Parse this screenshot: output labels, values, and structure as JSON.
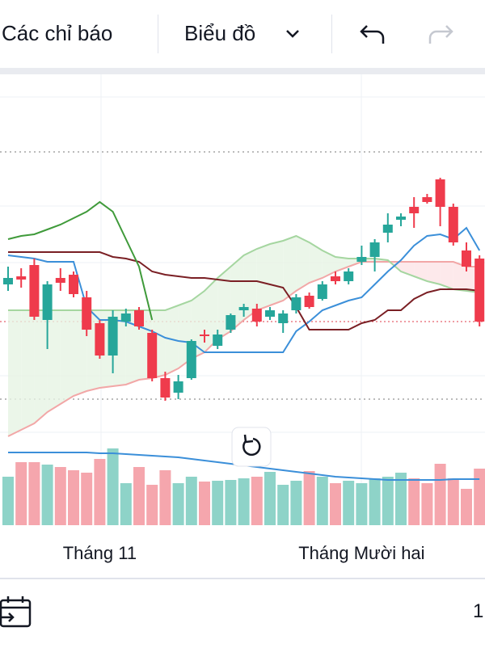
{
  "toolbar": {
    "indicators": "Các chỉ báo",
    "chart_type": "Biểu đồ"
  },
  "chart_data": {
    "type": "candlestick",
    "categories": [
      null,
      null,
      null,
      null,
      null,
      null,
      null,
      "Tháng 11",
      null,
      null,
      null,
      null,
      null,
      null,
      null,
      null,
      null,
      null,
      null,
      null,
      null,
      null,
      null,
      null,
      null,
      null,
      null,
      "Tháng Mười hai",
      null,
      null,
      null,
      null,
      null,
      null,
      null,
      null,
      null
    ],
    "open": [
      62,
      64.5,
      68,
      51,
      64,
      65,
      58,
      50,
      40,
      50.5,
      54,
      47,
      33,
      28.5,
      33,
      46.5,
      43,
      48,
      54,
      54.5,
      52,
      50,
      54,
      58.5,
      57.5,
      64.5,
      63,
      69,
      70.5,
      78,
      82,
      86,
      89,
      94.5,
      86,
      72.5,
      70
    ],
    "high": [
      67.5,
      67,
      70,
      63,
      67,
      66,
      60,
      51,
      54,
      54.5,
      55,
      48,
      35,
      34,
      45,
      48,
      48,
      53,
      56,
      56,
      55,
      54,
      59,
      59.5,
      63,
      66,
      67,
      74,
      76,
      84,
      84,
      89,
      90,
      95,
      87,
      75,
      71
    ],
    "low": [
      60,
      61,
      51,
      42,
      60,
      58,
      46,
      39,
      34.5,
      49,
      48,
      32,
      26,
      26.5,
      32.5,
      44,
      42,
      47,
      52,
      49,
      51,
      47,
      53,
      54.5,
      57,
      62,
      62,
      68,
      66,
      75,
      80,
      79.5,
      87,
      80,
      74,
      66,
      49
    ],
    "close": [
      64,
      63.5,
      52,
      62,
      62.5,
      59,
      48,
      40,
      52,
      53,
      49,
      33,
      27,
      32,
      44.5,
      46,
      46.5,
      52.5,
      55,
      50.5,
      54,
      53,
      58,
      55,
      62,
      63,
      66,
      70.5,
      75,
      80.5,
      83,
      84,
      87.5,
      86,
      75,
      67.5,
      50.5
    ],
    "up_color": "#26a69a",
    "down_color": "#ef3b4c",
    "ylim": [
      15,
      127.5
    ],
    "lines": [
      {
        "color": "#3b8fd9",
        "values": [
          71,
          70.5,
          70,
          69,
          69,
          69,
          55,
          51,
          51,
          50.5,
          49,
          47.5,
          45.5,
          44.5,
          44,
          41,
          41,
          41,
          41,
          41,
          41,
          41,
          47.5,
          50.5,
          54,
          55.5,
          57,
          58,
          62,
          66,
          69.5,
          74,
          77,
          77.5,
          76,
          79.5,
          72.5
        ]
      },
      {
        "color": "#7a1f24",
        "values": [
          72,
          72,
          72,
          72,
          72,
          72,
          72,
          72,
          70.5,
          70,
          69,
          66,
          65,
          64.5,
          64,
          64,
          63.5,
          63,
          63,
          63,
          62,
          61,
          55,
          48,
          48,
          48,
          48,
          50,
          51,
          54,
          54,
          57.5,
          59.5,
          60.5,
          60.5,
          60.5,
          60
        ]
      },
      {
        "color": "#3f9a3a",
        "values": [
          76,
          77,
          77.5,
          79,
          80.5,
          82.5,
          84.5,
          87.5,
          84.5,
          76,
          67.5,
          51,
          null,
          null,
          null,
          null,
          null,
          null,
          null,
          null,
          null,
          null,
          null,
          null,
          null,
          null,
          null,
          null,
          null,
          null,
          null,
          null,
          null,
          null,
          null,
          null,
          null
        ]
      }
    ],
    "cloud": {
      "span_a": {
        "color": "#f2a7a7",
        "values": [
          15,
          17,
          19,
          22.5,
          25,
          27.5,
          29,
          30,
          30.5,
          31,
          32.5,
          33,
          34,
          36,
          39,
          41,
          45,
          47.5,
          51,
          54,
          55.5,
          57,
          60,
          62.5,
          64,
          66,
          67.5,
          69,
          69,
          69,
          69,
          69,
          69,
          69,
          69,
          67.5,
          67.5
        ]
      },
      "span_b": {
        "color": "#a5d6a0",
        "values": [
          54,
          54,
          54,
          54,
          54,
          54,
          54,
          54,
          54,
          54,
          54,
          54,
          54,
          55.5,
          57,
          60,
          64,
          67.5,
          71,
          73,
          74.5,
          75.5,
          77,
          75,
          72.5,
          70.5,
          70,
          70,
          70,
          69.5,
          66,
          64.5,
          63,
          62,
          60.5,
          60,
          59.5
        ]
      },
      "up_fill": "#e6f4e4",
      "down_fill": "#fde4e6"
    },
    "volume": [
      60,
      78,
      78,
      75,
      72,
      68,
      65,
      82,
      95,
      52,
      72,
      50,
      68,
      52,
      60,
      54,
      55,
      56,
      58,
      60,
      66,
      50,
      55,
      67,
      60,
      52,
      55,
      52,
      58,
      60,
      65,
      58,
      52,
      76,
      58,
      45,
      70
    ],
    "volume_ylim": [
      0,
      100
    ],
    "volume_up_color": "#8ed3c8",
    "volume_down_color": "#f5a6ad",
    "volume_ma": {
      "color": "#3b8fd9",
      "values": [
        90,
        90,
        90,
        90,
        90,
        90,
        90,
        89,
        89,
        88,
        87,
        86,
        85,
        84,
        82,
        80,
        78,
        76,
        74,
        72,
        70,
        68,
        66,
        64,
        62,
        60,
        59,
        58,
        57,
        56,
        56,
        56,
        56,
        56,
        57,
        57,
        57
      ]
    }
  },
  "footer": {
    "range": "1"
  }
}
